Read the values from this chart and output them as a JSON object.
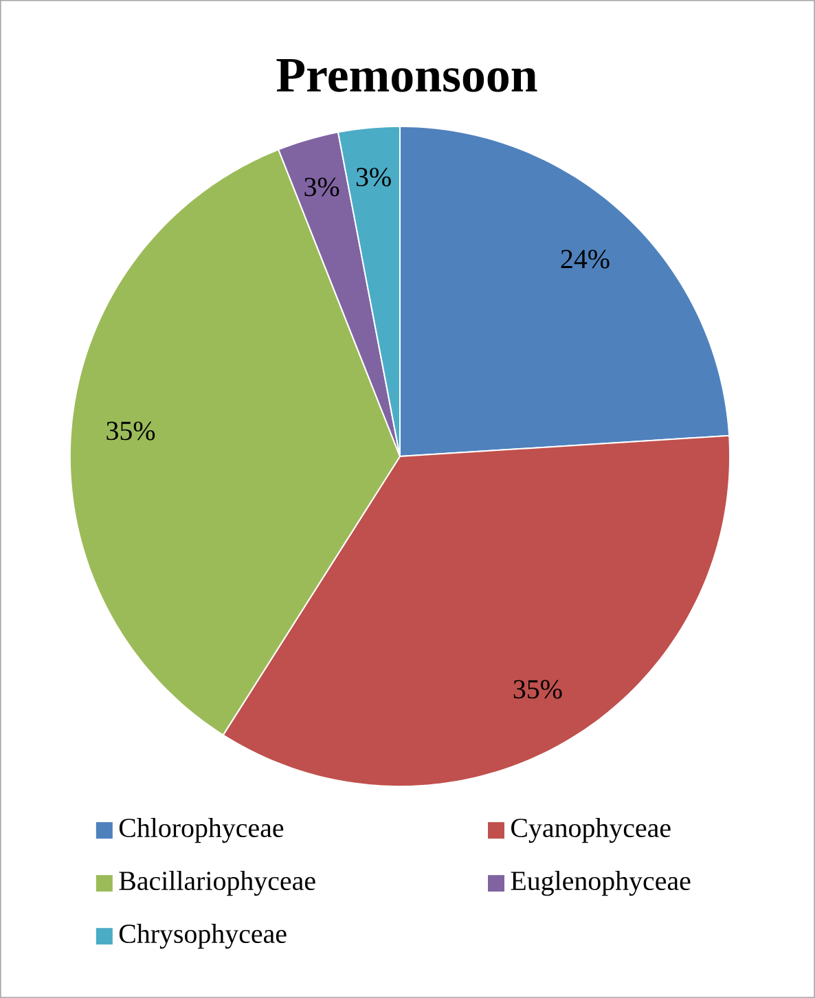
{
  "chart_data": {
    "type": "pie",
    "title": "Premonsoon",
    "categories": [
      "Chlorophyceae",
      "Cyanophyceae",
      "Bacillariophyceae",
      "Euglenophyceae",
      "Chrysophyceae"
    ],
    "values": [
      24,
      35,
      35,
      3,
      3
    ],
    "value_labels": [
      "24%",
      "35%",
      "35%",
      "3%",
      "3%"
    ],
    "colors": [
      "#4f81bd",
      "#c0504d",
      "#9bbb59",
      "#8064a2",
      "#4bacc6"
    ],
    "legend": "bottom"
  }
}
